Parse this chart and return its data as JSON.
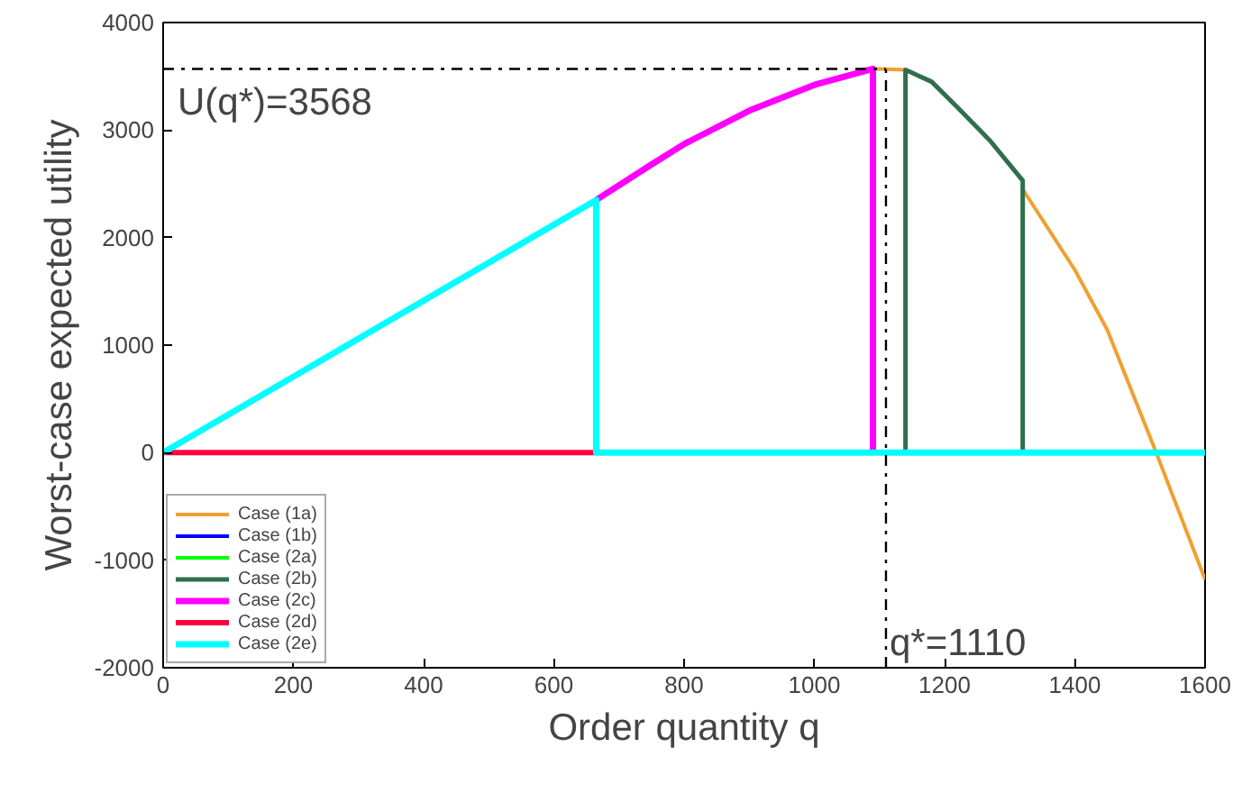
{
  "chart_data": {
    "type": "line",
    "xlabel": "Order quantity q",
    "ylabel": "Worst-case expected utility",
    "xlim": [
      0,
      1600
    ],
    "ylim": [
      -2000,
      4000
    ],
    "xticks": [
      0,
      200,
      400,
      600,
      800,
      1000,
      1200,
      1400,
      1600
    ],
    "yticks": [
      -2000,
      -1000,
      0,
      1000,
      2000,
      3000,
      4000
    ],
    "grid": false,
    "legend": "bottom left",
    "marker": "none",
    "line_style": "solid",
    "series": [
      {
        "name": "Case (1a)",
        "color": "#f0a030",
        "x": [
          1090,
          1140,
          null,
          1320,
          1400,
          1450,
          1525,
          1600
        ],
        "values": [
          3570,
          3560,
          null,
          2450,
          1700,
          1140,
          0,
          -1180
        ]
      },
      {
        "name": "Case (1b)",
        "color": "#0000ff"
      },
      {
        "name": "Case (2a)",
        "color": "#00ff00"
      },
      {
        "name": "Case (2b)",
        "color": "#2f6f4f",
        "x": [
          1140,
          1140,
          1180,
          1220,
          1270,
          1320,
          1320
        ],
        "values": [
          0,
          3560,
          3450,
          3210,
          2900,
          2530,
          0
        ]
      },
      {
        "name": "Case (2c)",
        "color": "#ff00ff",
        "x": [
          665,
          750,
          800,
          900,
          1000,
          1090,
          1090
        ],
        "values": [
          2350,
          2680,
          2870,
          3180,
          3420,
          3570,
          0
        ]
      },
      {
        "name": "Case (2d)",
        "color": "#ff0040",
        "x": [
          0,
          665
        ],
        "values": [
          0,
          0
        ]
      },
      {
        "name": "Case (2e)",
        "color": "#00ffff",
        "x": [
          0,
          665,
          665,
          1600
        ],
        "values": [
          0,
          2350,
          0,
          0
        ]
      }
    ],
    "ref_lines": [
      {
        "axis": "y",
        "value": 3568,
        "label": "U(q*)=3568",
        "line_style": "dashdot"
      },
      {
        "axis": "x",
        "value": 1110,
        "label": "q*=1110",
        "line_style": "dashdot"
      }
    ]
  }
}
